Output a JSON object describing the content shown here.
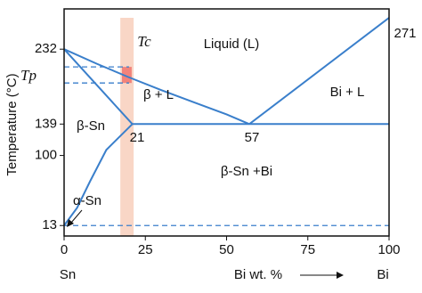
{
  "chart_data": {
    "type": "line",
    "xlabel": "Bi wt. %",
    "ylabel": "Temperature (°C)",
    "xlim": [
      0,
      100
    ],
    "ylim": [
      0,
      282
    ],
    "xticks": [
      0,
      25,
      50,
      75,
      100
    ],
    "yticks": [
      232,
      139,
      100,
      13
    ],
    "grid": false,
    "color": "#3a7fcb",
    "end_labels": [
      "Sn",
      "Bi"
    ],
    "series": [
      {
        "x": [
          0,
          10,
          20,
          30,
          40,
          50,
          57
        ],
        "values": [
          232,
          214,
          197,
          181,
          166,
          151,
          139
        ],
        "dash": false
      },
      {
        "x": [
          57,
          100
        ],
        "values": [
          139,
          271
        ],
        "dash": false
      },
      {
        "x": [
          21,
          100
        ],
        "values": [
          139,
          139
        ],
        "dash": false
      },
      {
        "x": [
          0,
          21
        ],
        "values": [
          232,
          139
        ],
        "dash": false
      },
      {
        "x": [
          21,
          13,
          8,
          4,
          0
        ],
        "values": [
          139,
          107,
          68,
          35,
          13
        ],
        "dash": false
      },
      {
        "x": [
          0,
          20
        ],
        "values": [
          210,
          210
        ],
        "dash": true
      },
      {
        "x": [
          0,
          20
        ],
        "values": [
          190,
          190
        ],
        "dash": true
      },
      {
        "x": [
          0,
          100
        ],
        "values": [
          13,
          13
        ],
        "dash": true
      }
    ],
    "band": {
      "x": [
        17.3,
        21.4
      ],
      "color": "#f9d6c6"
    },
    "box": {
      "x": [
        17.8,
        20.8
      ],
      "y": [
        190,
        210
      ],
      "color": "#f2837b"
    },
    "annotations": [
      "Liquid (L)",
      "β + L",
      "Bi + L",
      "β-Sn",
      "β-Sn +Bi",
      "α-Sn",
      "21",
      "57",
      "271",
      "Tc",
      "Tp"
    ]
  }
}
